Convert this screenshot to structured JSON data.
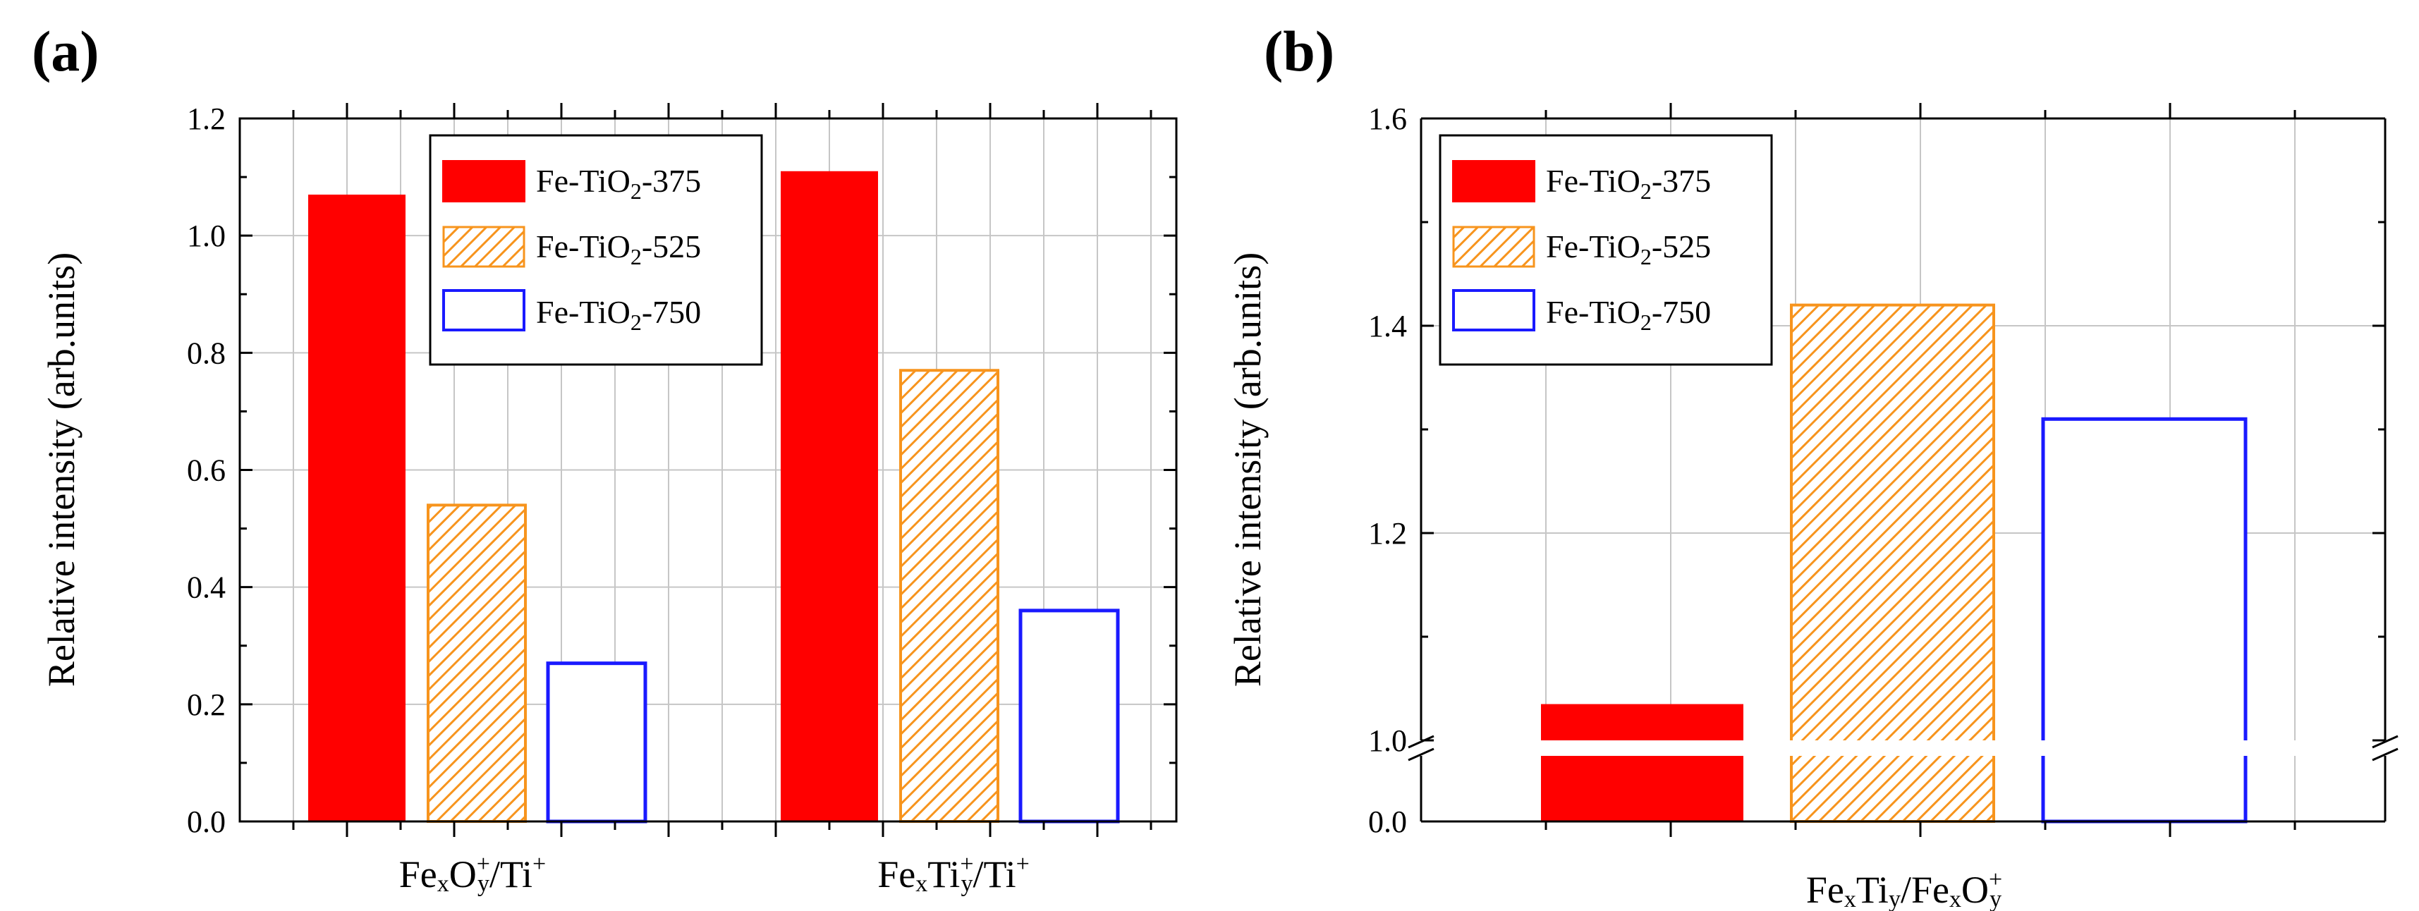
{
  "colors": {
    "red": "#ff0000",
    "orange": "#f7941d",
    "blue": "#1a1aff",
    "grid": "#c6c6c6"
  },
  "legend": {
    "s375": {
      "prefix": "Fe-TiO",
      "sub": "2",
      "suffix": "-375"
    },
    "s525": {
      "prefix": "Fe-TiO",
      "sub": "2",
      "suffix": "-525"
    },
    "s750": {
      "prefix": "Fe-TiO",
      "sub": "2",
      "suffix": "-750"
    }
  },
  "chart_data": [
    {
      "type": "bar",
      "panel_label": "(a)",
      "ylabel": "Relative intensity (arb.units)",
      "ylim": [
        0,
        1.2
      ],
      "yticks": [
        "0.0",
        "0.2",
        "0.4",
        "0.6",
        "0.8",
        "1.0",
        "1.2"
      ],
      "categories": [
        {
          "base": "Fe",
          "s1": "x",
          "mid": "O",
          "s2": "y",
          "sup": "+",
          "tail": "/Ti",
          "sup2": "+"
        },
        {
          "base": "Fe",
          "s1": "x",
          "mid": "Ti",
          "s2": "y",
          "sup": "+",
          "tail": "/Ti",
          "sup2": "+"
        }
      ],
      "series": [
        {
          "name": "Fe-TiO2-375",
          "values": [
            1.07,
            1.11
          ]
        },
        {
          "name": "Fe-TiO2-525",
          "values": [
            0.54,
            0.77
          ]
        },
        {
          "name": "Fe-TiO2-750",
          "values": [
            0.27,
            0.36
          ]
        }
      ],
      "legend_position": "top-right",
      "grid": true
    },
    {
      "type": "bar",
      "panel_label": "(b)",
      "ylabel": "Relative intensity (arb.units)",
      "broken_axis": {
        "lower": [
          0,
          0.05
        ],
        "upper": [
          1.0,
          1.6
        ]
      },
      "yticks": [
        "0.0",
        "1.0",
        "1.2",
        "1.4",
        "1.6"
      ],
      "categories": [
        {
          "base": "Fe",
          "s1": "x",
          "mid": "Ti",
          "s2": "y",
          "tail": "/Fe",
          "s3": "x",
          "tail2": "O",
          "s4": "y",
          "sup": "+"
        }
      ],
      "series": [
        {
          "name": "Fe-TiO2-375",
          "values": [
            1.035
          ]
        },
        {
          "name": "Fe-TiO2-525",
          "values": [
            1.42
          ]
        },
        {
          "name": "Fe-TiO2-750",
          "values": [
            1.31
          ]
        }
      ],
      "legend_position": "top-left",
      "grid": true
    }
  ]
}
